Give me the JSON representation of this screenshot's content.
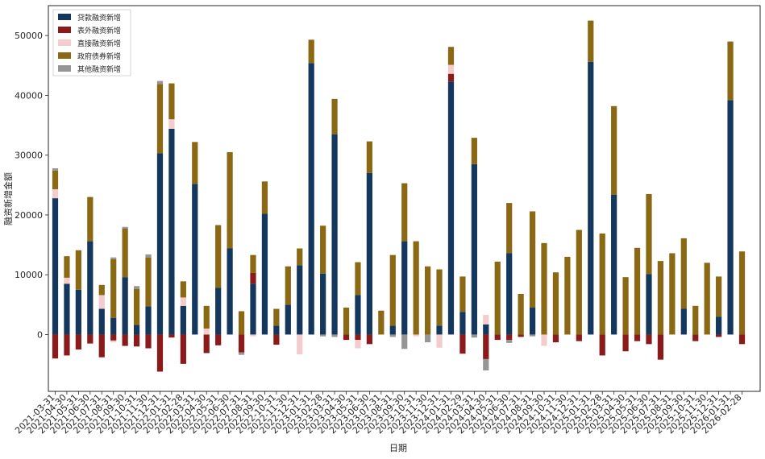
{
  "chart_data": {
    "type": "bar",
    "stacked": true,
    "title": "",
    "xlabel": "日期",
    "ylabel": "融资新增金额",
    "ylim": [
      -9500,
      55000
    ],
    "yticks": [
      0,
      10000,
      20000,
      30000,
      40000,
      50000
    ],
    "grid": false,
    "legend_position": "top-left",
    "categories": [
      "2021-03-31",
      "2021-04-30",
      "2021-05-31",
      "2021-06-30",
      "2021-07-31",
      "2021-08-31",
      "2021-09-30",
      "2021-10-31",
      "2021-11-30",
      "2021-12-31",
      "2022-01-31",
      "2022-02-28",
      "2022-03-31",
      "2022-04-30",
      "2022-05-31",
      "2022-06-30",
      "2022-07-31",
      "2022-08-31",
      "2022-09-30",
      "2022-10-31",
      "2022-11-30",
      "2022-12-31",
      "2023-01-31",
      "2023-02-28",
      "2023-03-31",
      "2023-04-30",
      "2023-05-31",
      "2023-06-30",
      "2023-07-31",
      "2023-08-31",
      "2023-09-30",
      "2023-10-31",
      "2023-11-30",
      "2023-12-31",
      "2024-01-31",
      "2024-02-29",
      "2024-03-31",
      "2024-04-30",
      "2024-05-31",
      "2024-06-30",
      "2024-07-31",
      "2024-08-31",
      "2024-09-30",
      "2024-10-31",
      "2024-11-30",
      "2024-12-31",
      "2025-01-31",
      "2025-02-28",
      "2025-03-31",
      "2025-04-30",
      "2025-05-31",
      "2025-06-30",
      "2025-07-31",
      "2025-08-31",
      "2025-09-30",
      "2025-10-31",
      "2025-11-30",
      "2025-12-31",
      "2026-01-31",
      "2026-02-28"
    ],
    "series": [
      {
        "name": "贷款融资新增",
        "color": "#14375e",
        "values": [
          22800,
          8500,
          7500,
          15600,
          4300,
          2800,
          9600,
          1600,
          4700,
          30300,
          34400,
          4800,
          25200,
          0,
          7800,
          14400,
          0,
          8500,
          20200,
          1500,
          5000,
          11600,
          45400,
          10200,
          33500,
          0,
          6600,
          27000,
          0,
          1500,
          15600,
          0,
          0,
          1500,
          42300,
          3800,
          28500,
          1700,
          0,
          13600,
          0,
          4500,
          0,
          0,
          0,
          0,
          45600,
          0,
          23400,
          0,
          0,
          10100,
          0,
          0,
          4300,
          0,
          0,
          3000,
          39200,
          0
        ]
      },
      {
        "name": "表外融资新增",
        "color": "#8b1a1a",
        "values": [
          -4000,
          -3500,
          -2500,
          -1500,
          -3800,
          -1000,
          -1900,
          -2000,
          -2300,
          -6200,
          -500,
          -4900,
          0,
          -3100,
          -1800,
          0,
          -3000,
          1800,
          0,
          -1700,
          0,
          0,
          0,
          0,
          0,
          -900,
          -900,
          -1600,
          0,
          0,
          0,
          0,
          0,
          0,
          1300,
          -3200,
          0,
          -4100,
          -900,
          -900,
          -400,
          0,
          0,
          -1300,
          0,
          -1100,
          0,
          -3500,
          0,
          -2800,
          -1100,
          -1600,
          -4200,
          0,
          0,
          -1100,
          0,
          -400,
          0,
          -1600
        ]
      },
      {
        "name": "直接融资新增",
        "color": "#f4cccc",
        "values": [
          1500,
          1000,
          0,
          0,
          2300,
          -300,
          0,
          0,
          0,
          0,
          1600,
          1400,
          0,
          1000,
          0,
          0,
          0,
          -300,
          0,
          0,
          0,
          -3300,
          0,
          0,
          0,
          0,
          -1400,
          0,
          0,
          0,
          0,
          -300,
          0,
          -2200,
          1500,
          0,
          0,
          1600,
          0,
          0,
          0,
          0,
          -1900,
          0,
          0,
          0,
          0,
          0,
          0,
          0,
          0,
          0,
          0,
          0,
          0,
          0,
          0,
          0,
          0,
          0
        ]
      },
      {
        "name": "政府债券新增",
        "color": "#8b6914",
        "values": [
          3100,
          3600,
          6600,
          7400,
          1700,
          9800,
          8100,
          6000,
          8200,
          11600,
          6000,
          2700,
          7000,
          3800,
          10500,
          16100,
          3900,
          3000,
          5400,
          2800,
          6400,
          2800,
          3900,
          8000,
          5900,
          4500,
          5500,
          5300,
          4000,
          11800,
          9700,
          15600,
          11400,
          9400,
          3000,
          5900,
          4400,
          0,
          12200,
          8400,
          6800,
          16100,
          15300,
          10400,
          13000,
          17500,
          6900,
          16900,
          14800,
          9600,
          14500,
          13400,
          12300,
          13600,
          11800,
          4800,
          12000,
          6700,
          9800,
          13900
        ]
      },
      {
        "name": "其他融资新增",
        "color": "#969696",
        "values": [
          400,
          0,
          0,
          0,
          0,
          300,
          300,
          500,
          500,
          500,
          0,
          0,
          0,
          0,
          0,
          0,
          -400,
          0,
          0,
          0,
          0,
          0,
          0,
          -300,
          -400,
          0,
          0,
          0,
          0,
          -400,
          -2400,
          0,
          -1300,
          0,
          0,
          0,
          -500,
          -1900,
          0,
          -500,
          0,
          -300,
          0,
          0,
          0,
          0,
          0,
          0,
          0,
          0,
          0,
          0,
          0,
          0,
          0,
          0,
          0,
          0,
          0,
          0
        ]
      }
    ]
  }
}
